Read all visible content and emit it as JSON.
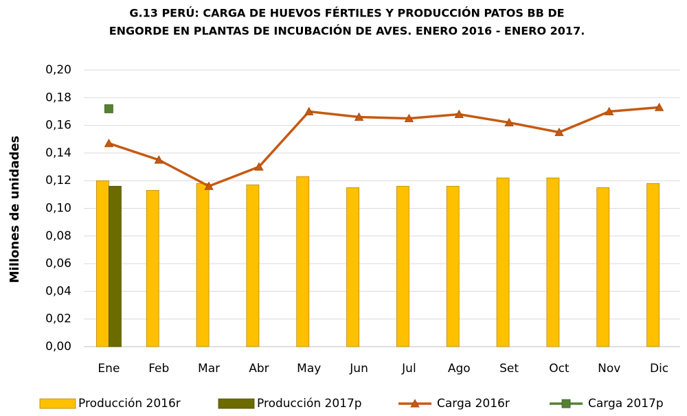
{
  "chart_data": {
    "type": "bar_line",
    "title": [
      "G.13  PERÚ: CARGA DE HUEVOS FÉRTILES Y PRODUCCIÓN PATOS BB DE",
      "ENGORDE EN PLANTAS DE INCUBACIÓN DE AVES. ENERO 2016 - ENERO 2017."
    ],
    "ylabel": "Millones de unidades",
    "categories": [
      "Ene",
      "Feb",
      "Mar",
      "Abr",
      "May",
      "Jun",
      "Jul",
      "Ago",
      "Set",
      "Oct",
      "Nov",
      "Dic"
    ],
    "series": [
      {
        "name": "Producción 2016r",
        "kind": "bar",
        "color": "#FFC000",
        "values": [
          0.12,
          0.113,
          0.118,
          0.117,
          0.123,
          0.115,
          0.116,
          0.116,
          0.122,
          0.122,
          0.115,
          0.118
        ]
      },
      {
        "name": "Producción 2017p",
        "kind": "bar",
        "color": "#6B6B00",
        "values": [
          0.116,
          null,
          null,
          null,
          null,
          null,
          null,
          null,
          null,
          null,
          null,
          null
        ]
      },
      {
        "name": "Carga 2016r",
        "kind": "line",
        "marker": "triangle",
        "color": "#C55A11",
        "values": [
          0.147,
          0.135,
          0.116,
          0.13,
          0.17,
          0.166,
          0.165,
          0.168,
          0.162,
          0.155,
          0.17,
          0.173
        ]
      },
      {
        "name": "Carga 2017p",
        "kind": "line",
        "marker": "square",
        "color": "#548235",
        "values": [
          0.172,
          null,
          null,
          null,
          null,
          null,
          null,
          null,
          null,
          null,
          null,
          null
        ]
      }
    ],
    "ylim": [
      0,
      0.2
    ],
    "yticks": [
      {
        "value": 0,
        "label": "0,00"
      },
      {
        "value": 0.02,
        "label": "0,02"
      },
      {
        "value": 0.04,
        "label": "0,04"
      },
      {
        "value": 0.06,
        "label": "0,06"
      },
      {
        "value": 0.08,
        "label": "0,08"
      },
      {
        "value": 0.1,
        "label": "0,10"
      },
      {
        "value": 0.12,
        "label": "0,12"
      },
      {
        "value": 0.14,
        "label": "0,14"
      },
      {
        "value": 0.16,
        "label": "0,16"
      },
      {
        "value": 0.18,
        "label": "0,18"
      },
      {
        "value": 0.2,
        "label": "0,20"
      }
    ],
    "grid": true,
    "legend": "bottom"
  }
}
